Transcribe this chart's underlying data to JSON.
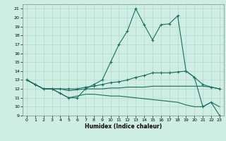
{
  "xlabel": "Humidex (Indice chaleur)",
  "bg_color": "#ceeee4",
  "grid_color": "#b2d8cc",
  "line_color": "#1a6e5e",
  "xlim": [
    -0.5,
    23.5
  ],
  "ylim": [
    9,
    21.5
  ],
  "xticks": [
    0,
    1,
    2,
    3,
    4,
    5,
    6,
    7,
    8,
    9,
    10,
    11,
    12,
    13,
    14,
    15,
    16,
    17,
    18,
    19,
    20,
    21,
    22,
    23
  ],
  "yticks": [
    9,
    10,
    11,
    12,
    13,
    14,
    15,
    16,
    17,
    18,
    19,
    20,
    21
  ],
  "line1_x": [
    0,
    1,
    2,
    3,
    4,
    5,
    6,
    7,
    8,
    9,
    10,
    11,
    12,
    13,
    14,
    15,
    16,
    17,
    18,
    19,
    20,
    21,
    22,
    23
  ],
  "line1_y": [
    13,
    12.5,
    12,
    12,
    11.5,
    11,
    11,
    12,
    12.5,
    13,
    15,
    17,
    18.5,
    21,
    19.2,
    17.5,
    19.2,
    19.3,
    20.2,
    14,
    13.3,
    10,
    10.5,
    9
  ],
  "line2_x": [
    0,
    1,
    2,
    3,
    4,
    5,
    6,
    7,
    8,
    9,
    10,
    11,
    12,
    13,
    14,
    15,
    16,
    17,
    18,
    19,
    20,
    21,
    22,
    23
  ],
  "line2_y": [
    13,
    12.5,
    12,
    12,
    12,
    12,
    12,
    12.2,
    12.3,
    12.5,
    12.7,
    12.8,
    13,
    13.3,
    13.5,
    13.8,
    13.8,
    13.8,
    13.9,
    14,
    13.3,
    12.5,
    12.2,
    12
  ],
  "line3_x": [
    0,
    1,
    2,
    3,
    4,
    5,
    6,
    7,
    8,
    9,
    10,
    11,
    12,
    13,
    14,
    15,
    16,
    17,
    18,
    19,
    20,
    21,
    22,
    23
  ],
  "line3_y": [
    13,
    12.5,
    12,
    12,
    12,
    11.8,
    11.9,
    12,
    12,
    12,
    12.1,
    12.1,
    12.2,
    12.2,
    12.2,
    12.3,
    12.3,
    12.3,
    12.3,
    12.3,
    12.3,
    12.3,
    12.2,
    12
  ],
  "line4_x": [
    0,
    1,
    2,
    3,
    4,
    5,
    6,
    7,
    8,
    9,
    10,
    11,
    12,
    13,
    14,
    15,
    16,
    17,
    18,
    19,
    20,
    21,
    22,
    23
  ],
  "line4_y": [
    13,
    12.5,
    12,
    12,
    11.5,
    11,
    11.2,
    11.4,
    11.4,
    11.3,
    11.2,
    11.2,
    11.1,
    11.0,
    10.9,
    10.8,
    10.7,
    10.6,
    10.5,
    10.2,
    10.0,
    10.0,
    10.5,
    10
  ]
}
